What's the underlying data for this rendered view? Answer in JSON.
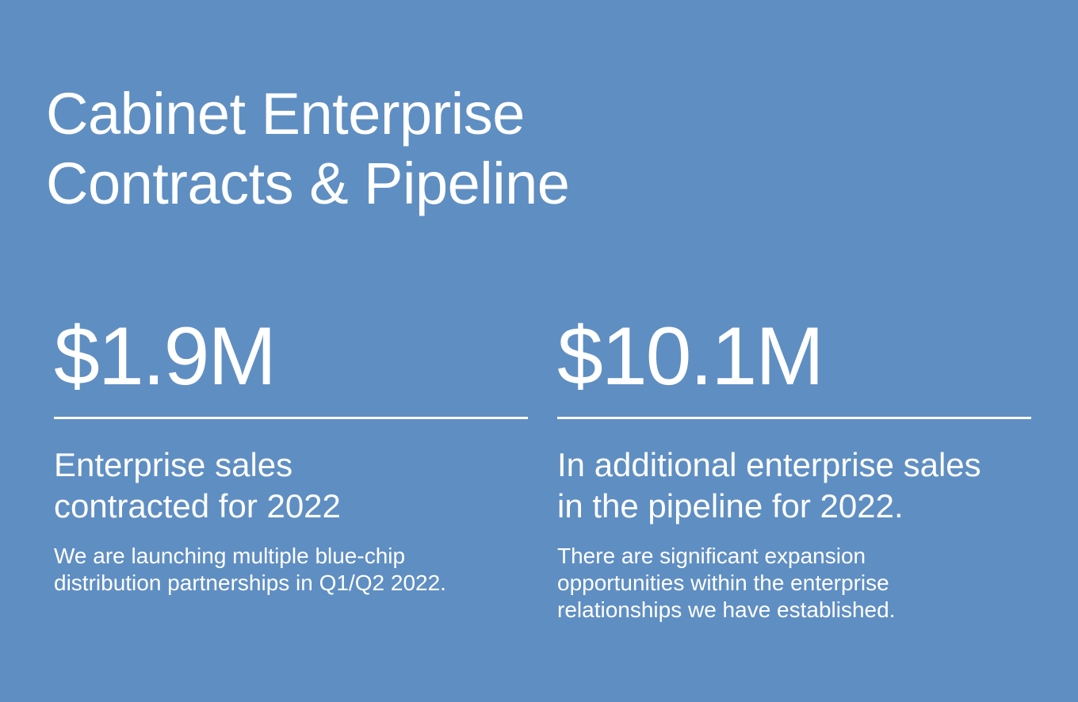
{
  "slide": {
    "background_color": "#5f8ec2",
    "text_color": "#ffffff",
    "title_lines": [
      "Cabinet Enterprise",
      "Contracts & Pipeline"
    ]
  },
  "stats": [
    {
      "value": "$1.9M",
      "heading_lines": [
        "Enterprise sales",
        "contracted for 2022"
      ],
      "description_lines": [
        "We are launching multiple blue-chip",
        "distribution partnerships in Q1/Q2 2022."
      ]
    },
    {
      "value": "$10.1M",
      "heading_lines": [
        "In additional enterprise sales",
        "in the pipeline for 2022."
      ],
      "description_lines": [
        "There are significant expansion",
        "opportunities within the enterprise",
        "relationships we have established."
      ]
    }
  ]
}
